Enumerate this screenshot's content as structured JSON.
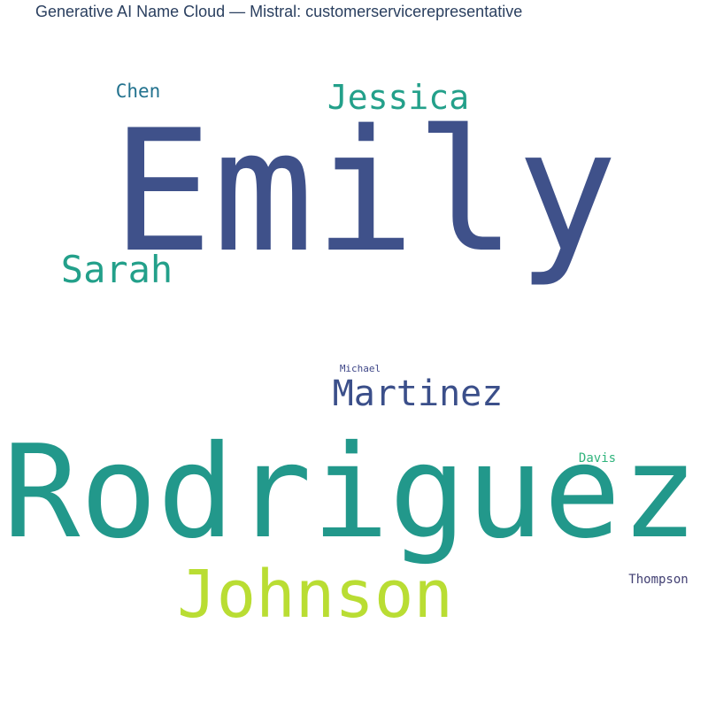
{
  "chart_data": {
    "type": "wordcloud",
    "title": "Generative AI Name Cloud — Mistral: customerservicerepresentative",
    "words": [
      {
        "text": "Emily",
        "weight": 100,
        "color": "#3f518a"
      },
      {
        "text": "Rodriguez",
        "weight": 88,
        "color": "#22988b"
      },
      {
        "text": "Johnson",
        "weight": 56,
        "color": "#b9dd33"
      },
      {
        "text": "Martinez",
        "weight": 31,
        "color": "#3b4f8a"
      },
      {
        "text": "Jessica",
        "weight": 29,
        "color": "#23a08a"
      },
      {
        "text": "Sarah",
        "weight": 32,
        "color": "#23a08a"
      },
      {
        "text": "Chen",
        "weight": 15,
        "color": "#22728e"
      },
      {
        "text": "Davis",
        "weight": 10,
        "color": "#2fb47c"
      },
      {
        "text": "Thompson",
        "weight": 10,
        "color": "#424073"
      },
      {
        "text": "Michael",
        "weight": 8,
        "color": "#3f4788"
      }
    ]
  }
}
